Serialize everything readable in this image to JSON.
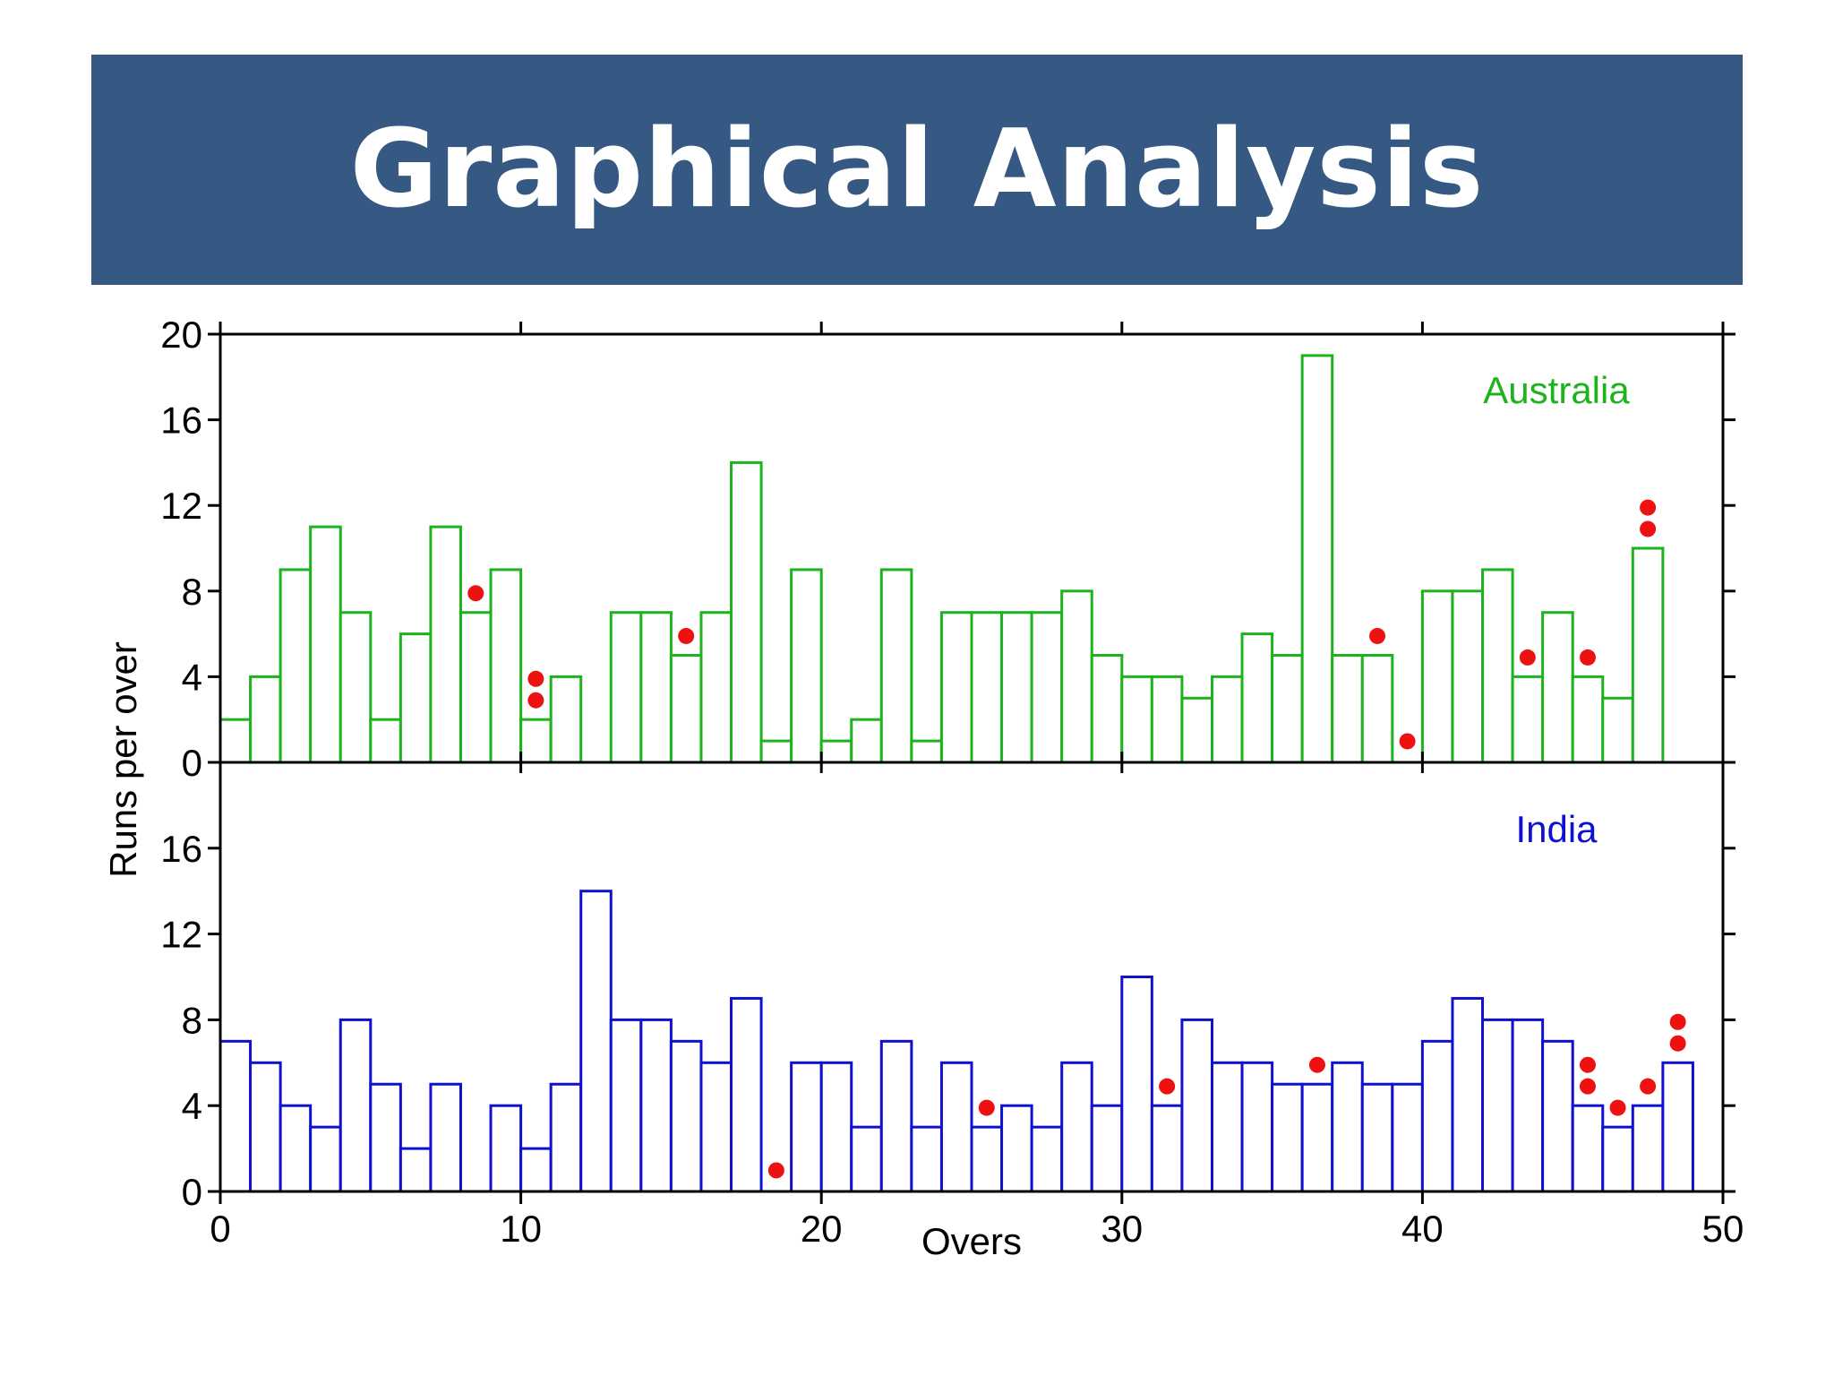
{
  "slide": {
    "title": "Graphical Analysis"
  },
  "colors": {
    "banner": "#365983",
    "australia": "#1db31d",
    "india": "#1010d0",
    "wicket": "#ee1111",
    "axis": "#000000"
  },
  "chart_data": {
    "type": "bar",
    "xlabel": "Overs",
    "ylabel": "Runs per over",
    "xlim": [
      0,
      50
    ],
    "x_ticks": [
      "0",
      "10",
      "20",
      "30",
      "40",
      "50"
    ],
    "ylim": [
      0,
      20
    ],
    "y_ticks_top": [
      "0",
      "4",
      "8",
      "12",
      "16",
      "20"
    ],
    "y_ticks_bottom": [
      "0",
      "4",
      "8",
      "12",
      "16"
    ],
    "wicket_marker": "red dot = wicket",
    "panels": [
      {
        "name": "Australia",
        "label": "Australia",
        "color": "#1db31d",
        "overs": [
          1,
          2,
          3,
          4,
          5,
          6,
          7,
          8,
          9,
          10,
          11,
          12,
          13,
          14,
          15,
          16,
          17,
          18,
          19,
          20,
          21,
          22,
          23,
          24,
          25,
          26,
          27,
          28,
          29,
          30,
          31,
          32,
          33,
          34,
          35,
          36,
          37,
          38,
          39,
          40,
          41,
          42,
          43,
          44,
          45,
          46,
          47,
          48
        ],
        "runs": [
          2,
          4,
          9,
          11,
          7,
          2,
          6,
          11,
          7,
          9,
          2,
          4,
          0,
          7,
          7,
          5,
          7,
          14,
          1,
          9,
          1,
          2,
          9,
          1,
          7,
          7,
          7,
          7,
          8,
          5,
          4,
          4,
          3,
          4,
          6,
          5,
          19,
          5,
          5,
          0,
          8,
          8,
          9,
          4,
          7,
          4,
          3,
          10
        ],
        "wickets": [
          {
            "over": 9,
            "count": 1
          },
          {
            "over": 11,
            "count": 2
          },
          {
            "over": 16,
            "count": 1
          },
          {
            "over": 39,
            "count": 1
          },
          {
            "over": 40,
            "count": 1
          },
          {
            "over": 44,
            "count": 1
          },
          {
            "over": 46,
            "count": 1
          },
          {
            "over": 48,
            "count": 2
          }
        ]
      },
      {
        "name": "India",
        "label": "India",
        "color": "#1010d0",
        "overs": [
          1,
          2,
          3,
          4,
          5,
          6,
          7,
          8,
          9,
          10,
          11,
          12,
          13,
          14,
          15,
          16,
          17,
          18,
          19,
          20,
          21,
          22,
          23,
          24,
          25,
          26,
          27,
          28,
          29,
          30,
          31,
          32,
          33,
          34,
          35,
          36,
          37,
          38,
          39,
          40,
          41,
          42,
          43,
          44,
          45,
          46,
          47,
          48,
          49,
          50
        ],
        "runs": [
          7,
          6,
          4,
          3,
          8,
          5,
          2,
          5,
          0,
          4,
          2,
          5,
          14,
          8,
          8,
          7,
          6,
          9,
          0,
          6,
          6,
          3,
          7,
          3,
          6,
          3,
          4,
          3,
          6,
          4,
          10,
          4,
          8,
          6,
          6,
          5,
          5,
          6,
          5,
          5,
          7,
          9,
          8,
          8,
          7,
          4,
          3,
          4,
          6,
          0
        ],
        "wickets": [
          {
            "over": 19,
            "count": 1
          },
          {
            "over": 26,
            "count": 1
          },
          {
            "over": 32,
            "count": 1
          },
          {
            "over": 37,
            "count": 1
          },
          {
            "over": 46,
            "count": 2
          },
          {
            "over": 47,
            "count": 1
          },
          {
            "over": 48,
            "count": 1
          },
          {
            "over": 49,
            "count": 2
          }
        ]
      }
    ]
  }
}
